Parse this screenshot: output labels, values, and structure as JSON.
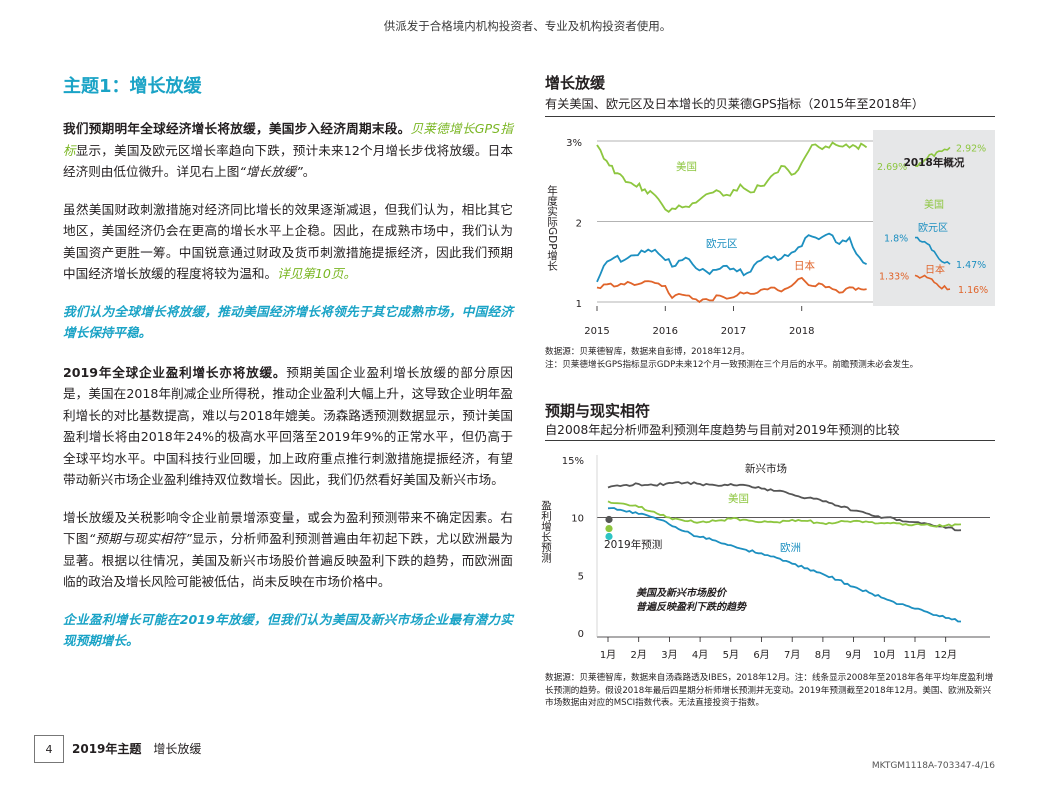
{
  "top_note": "供派发于合格境内机构投资者、专业及机构投资者使用。",
  "left": {
    "title": "主题1：增长放缓",
    "p1": {
      "bold": "我们预期明年全球经济增长将放缓，美国步入经济周期末段。",
      "link": "贝莱德增长GPS指标",
      "rest": "显示，美国及欧元区增长率趋向下跌，预计未来12个月增长步伐将放缓。日本经济则由低位微升。详见右上图",
      "quote": "“增长放缓”",
      "end": "。"
    },
    "p2": {
      "text": "虽然美国财政刺激措施对经济同比增长的效果逐渐减退，但我们认为，相比其它地区，美国经济仍会在更高的增长水平上企稳。因此，在成熟市场中，我们认为美国资产更胜一筹。中国锐意通过财政及货币刺激措施提振经济，因此我们预期中国经济增长放缓的程度将较为温和。",
      "link": "详见第10页。"
    },
    "callout1": "我们认为全球增长将放缓，推动美国经济增长将领先于其它成熟市场，中国经济增长保持平稳。",
    "p3": {
      "bold": "2019年全球企业盈利增长亦将放缓。",
      "text": "预期美国企业盈利增长放缓的部分原因是，美国在2018年削减企业所得税，推动企业盈利大幅上升，这导致企业明年盈利增长的对比基数提高，难以与2018年媲美。汤森路透预测数据显示，预计美国盈利增长将由2018年24%的极高水平回落至2019年9%的正常水平，但仍高于全球平均水平。中国科技行业回暖，加上政府重点推行刺激措施提振经济，有望带动新兴市场企业盈利维持双位数增长。因此，我们仍然看好美国及新兴市场。"
    },
    "p4": {
      "text1": "增长放缓及关税影响令企业前景增添变量，或会为盈利预测带来不确定因素。右下图",
      "quote": "“预期与现实相符”",
      "text2": "显示，分析师盈利预测普遍由年初起下跌，尤以欧洲最为显著。根据以往情况，美国及新兴市场股价普遍反映盈利下跌的趋势，而欧洲面临的政治及增长风险可能被低估，尚未反映在市场价格中。"
    },
    "callout2": "企业盈利增长可能在2019年放缓，但我们认为美国及新兴市场企业最有潜力实现预期增长。"
  },
  "chart1": {
    "title": "增长放缓",
    "subtitle": "有关美国、欧元区及日本增长的贝莱德GPS指标（2015年至2018年）",
    "ylabel": "年度实际GDP增长",
    "ytick_labels": [
      "3%",
      "2",
      "1"
    ],
    "xtick_labels": [
      "2015",
      "2016",
      "2017",
      "2018"
    ],
    "series_labels": {
      "us": "美国",
      "eu": "欧元区",
      "jp": "日本"
    },
    "panel": {
      "title": "2018年概况",
      "us_start": "2.69%",
      "us_end": "2.92%",
      "eu_start": "1.8%",
      "eu_end": "1.47%",
      "jp_start": "1.33%",
      "jp_end": "1.16%",
      "us_label": "美国",
      "eu_label": "欧元区",
      "jp_label": "日本"
    },
    "source": "数据源：贝莱德智库，数据来自彭博，2018年12月。",
    "note": "注：贝莱德增长GPS指标显示GDP未来12个月一致预测在三个月后的水平。前瞻预测未必会发生。",
    "colors": {
      "us": "#8dc63f",
      "eu": "#1c8fc0",
      "jp": "#e0642a",
      "panel": "#e6e7e8"
    }
  },
  "chart2": {
    "title": "预期与现实相符",
    "subtitle": "自2008年起分析师盈利预测年度趋势与目前对2019年预测的比较",
    "ylabel": "盈利增长预测",
    "ytick_labels": [
      "15%",
      "10",
      "5",
      "0"
    ],
    "xtick_labels": [
      "1月",
      "2月",
      "3月",
      "4月",
      "5月",
      "6月",
      "7月",
      "8月",
      "9月",
      "10月",
      "11月",
      "12月"
    ],
    "series_labels": {
      "em": "新兴市场",
      "us": "美国",
      "eu": "欧洲"
    },
    "dot_label": "2019年预测",
    "annotation_line1": "美国及新兴市场股价",
    "annotation_line2": "普遍反映盈利下跌的趋势",
    "source": "数据源：贝莱德智库，数据来自汤森路透及IBES，2018年12月。注：线条显示2008年至2018年各年平均年度盈利增长预测的趋势。假设2018年最后四星期分析师增长预测并无变动。2019年预测截至2018年12月。美国、欧洲及新兴市场数据由对应的MSCI指数代表。无法直接投资于指数。",
    "colors": {
      "em": "#555555",
      "us": "#8dc63f",
      "eu": "#1c8fc0"
    }
  },
  "chart_data": [
    {
      "type": "line",
      "title": "增长放缓",
      "ylabel": "年度实际GDP增长",
      "x_range": [
        "2015",
        "2018-12"
      ],
      "ylim": [
        1,
        3
      ],
      "series": [
        {
          "name": "美国",
          "x": [
            2015.0,
            2015.1,
            2015.3,
            2015.5,
            2015.7,
            2015.9,
            2016.05,
            2016.2,
            2016.35,
            2016.5,
            2016.65,
            2016.8,
            2016.95,
            2017.1,
            2017.25,
            2017.4,
            2017.55,
            2017.7,
            2017.85,
            2018.0,
            2018.15,
            2018.3,
            2018.45,
            2018.6,
            2018.75,
            2018.95
          ],
          "values": [
            2.95,
            2.78,
            2.6,
            2.48,
            2.4,
            2.28,
            2.12,
            2.2,
            2.18,
            2.27,
            2.35,
            2.37,
            2.32,
            2.46,
            2.36,
            2.44,
            2.56,
            2.69,
            2.58,
            2.73,
            2.95,
            2.9,
            2.98,
            2.93,
            2.95,
            2.92
          ]
        },
        {
          "name": "欧元区",
          "x": [
            2015.0,
            2015.1,
            2015.25,
            2015.4,
            2015.55,
            2015.7,
            2015.85,
            2016.0,
            2016.15,
            2016.3,
            2016.45,
            2016.6,
            2016.75,
            2016.9,
            2017.05,
            2017.2,
            2017.35,
            2017.5,
            2017.65,
            2017.8,
            2017.95,
            2018.1,
            2018.25,
            2018.4,
            2018.55,
            2018.7,
            2018.85,
            2018.95
          ],
          "values": [
            1.25,
            1.45,
            1.55,
            1.52,
            1.58,
            1.62,
            1.65,
            1.52,
            1.45,
            1.55,
            1.42,
            1.38,
            1.4,
            1.45,
            1.38,
            1.36,
            1.5,
            1.57,
            1.52,
            1.57,
            1.68,
            1.83,
            1.78,
            1.85,
            1.72,
            1.8,
            1.55,
            1.47
          ]
        },
        {
          "name": "日本",
          "x": [
            2015.0,
            2015.15,
            2015.3,
            2015.45,
            2015.6,
            2015.75,
            2015.9,
            2016.0,
            2016.1,
            2016.2,
            2016.35,
            2016.5,
            2016.65,
            2016.8,
            2016.95,
            2017.1,
            2017.25,
            2017.4,
            2017.55,
            2017.7,
            2017.85,
            2018.0,
            2018.15,
            2018.3,
            2018.45,
            2018.6,
            2018.75,
            2018.95
          ],
          "values": [
            1.18,
            1.22,
            1.2,
            1.25,
            1.22,
            1.26,
            1.23,
            1.2,
            1.05,
            1.1,
            1.08,
            1.0,
            1.02,
            1.08,
            1.05,
            1.12,
            1.1,
            1.15,
            1.18,
            1.13,
            1.2,
            1.3,
            1.2,
            1.22,
            1.16,
            1.12,
            1.18,
            1.16
          ]
        }
      ],
      "panel_2018": {
        "美国": [
          2.69,
          2.92
        ],
        "欧元区": [
          1.8,
          1.47
        ],
        "日本": [
          1.33,
          1.16
        ]
      }
    },
    {
      "type": "line",
      "title": "预期与现实相符",
      "ylabel": "盈利增长预测",
      "categories": [
        "1月",
        "2月",
        "3月",
        "4月",
        "5月",
        "6月",
        "7月",
        "8月",
        "9月",
        "10月",
        "11月",
        "12月"
      ],
      "ylim": [
        0,
        15
      ],
      "series": [
        {
          "name": "新兴市场",
          "x": [
            1.0,
            1.5,
            2.0,
            2.5,
            3.0,
            3.5,
            4.0,
            4.5,
            5.0,
            5.5,
            6.0,
            6.5,
            7.0,
            7.5,
            8.0,
            8.5,
            9.0,
            9.5,
            10.0,
            10.5,
            11.0,
            11.5,
            12.0,
            12.5
          ],
          "values": [
            12.6,
            12.8,
            12.9,
            12.8,
            13.0,
            13.0,
            12.9,
            12.8,
            12.9,
            12.8,
            12.5,
            12.3,
            12.0,
            11.7,
            11.4,
            11.0,
            10.6,
            10.3,
            10.0,
            9.8,
            9.6,
            9.4,
            9.1,
            8.9
          ]
        },
        {
          "name": "美国",
          "x": [
            1.0,
            1.5,
            2.0,
            2.5,
            3.0,
            3.5,
            4.0,
            4.5,
            5.0,
            5.5,
            6.0,
            6.5,
            7.0,
            7.5,
            8.0,
            8.5,
            9.0,
            9.5,
            10.0,
            10.5,
            11.0,
            11.5,
            12.0,
            12.5
          ],
          "values": [
            11.4,
            11.2,
            10.9,
            10.5,
            10.0,
            9.7,
            9.6,
            9.7,
            9.9,
            9.8,
            9.6,
            9.6,
            9.8,
            9.7,
            9.5,
            9.6,
            9.7,
            9.6,
            9.5,
            9.5,
            9.4,
            9.3,
            9.3,
            9.4
          ]
        },
        {
          "name": "欧洲",
          "x": [
            1.0,
            1.5,
            2.0,
            2.5,
            3.0,
            3.5,
            4.0,
            4.5,
            5.0,
            5.5,
            6.0,
            6.5,
            7.0,
            7.5,
            8.0,
            8.5,
            9.0,
            9.5,
            10.0,
            10.5,
            11.0,
            11.5,
            12.0,
            12.5
          ],
          "values": [
            10.8,
            10.6,
            10.3,
            10.0,
            9.4,
            8.8,
            8.3,
            8.0,
            7.6,
            7.2,
            6.9,
            6.5,
            6.0,
            5.6,
            5.1,
            4.6,
            4.0,
            3.5,
            3.0,
            2.5,
            2.1,
            1.7,
            1.3,
            1.0
          ]
        }
      ],
      "forecast_2019": {
        "新兴市场": 10.0,
        "美国": 9.3,
        "欧洲": 8.7
      }
    }
  ],
  "footer": {
    "page": "4",
    "theme": "2019年主题",
    "section": "增长放缓",
    "code": "MKTGM1118A-703347-4/16"
  }
}
